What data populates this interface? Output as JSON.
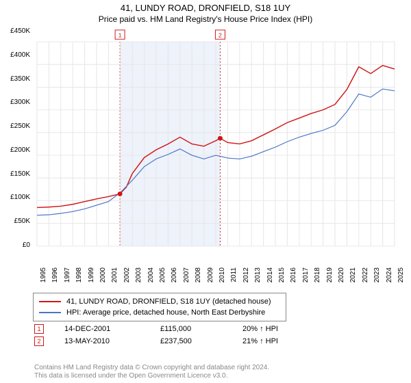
{
  "title": "41, LUNDY ROAD, DRONFIELD, S18 1UY",
  "subtitle": "Price paid vs. HM Land Registry's House Price Index (HPI)",
  "chart": {
    "type": "line",
    "background_color": "#ffffff",
    "grid_color": "#e6e6e6",
    "plot_border_color": "#888888",
    "ylim": [
      0,
      450000
    ],
    "ytick_step": 50000,
    "ytick_labels": [
      "£0",
      "£50K",
      "£100K",
      "£150K",
      "£200K",
      "£250K",
      "£300K",
      "£350K",
      "£400K",
      "£450K"
    ],
    "xlim": [
      1995,
      2025
    ],
    "xtick_step": 1,
    "xtick_labels": [
      "1995",
      "1996",
      "1997",
      "1998",
      "1999",
      "2000",
      "2001",
      "2002",
      "2003",
      "2004",
      "2005",
      "2006",
      "2007",
      "2008",
      "2009",
      "2010",
      "2011",
      "2012",
      "2013",
      "2014",
      "2015",
      "2016",
      "2017",
      "2018",
      "2019",
      "2020",
      "2021",
      "2022",
      "2023",
      "2024",
      "2025"
    ],
    "highlight_band_color": "#eef2fa",
    "highlight_band": [
      2001.96,
      2010.37
    ],
    "highlight_dash_color": "#d01616",
    "series": [
      {
        "name": "subject",
        "label": "41, LUNDY ROAD, DRONFIELD, S18 1UY (detached house)",
        "color": "#d01616",
        "line_width": 1.5,
        "data": [
          [
            1995,
            85000
          ],
          [
            1996,
            86000
          ],
          [
            1997,
            88000
          ],
          [
            1998,
            92000
          ],
          [
            1999,
            98000
          ],
          [
            2000,
            104000
          ],
          [
            2001,
            109000
          ],
          [
            2001.96,
            115000
          ],
          [
            2002.5,
            130000
          ],
          [
            2003,
            160000
          ],
          [
            2004,
            195000
          ],
          [
            2005,
            212000
          ],
          [
            2006,
            225000
          ],
          [
            2007,
            240000
          ],
          [
            2008,
            225000
          ],
          [
            2009,
            220000
          ],
          [
            2010,
            232000
          ],
          [
            2010.37,
            237500
          ],
          [
            2011,
            228000
          ],
          [
            2012,
            225000
          ],
          [
            2013,
            232000
          ],
          [
            2014,
            245000
          ],
          [
            2015,
            258000
          ],
          [
            2016,
            272000
          ],
          [
            2017,
            282000
          ],
          [
            2018,
            292000
          ],
          [
            2019,
            300000
          ],
          [
            2020,
            312000
          ],
          [
            2021,
            345000
          ],
          [
            2022,
            395000
          ],
          [
            2023,
            380000
          ],
          [
            2024,
            398000
          ],
          [
            2025,
            390000
          ]
        ]
      },
      {
        "name": "hpi",
        "label": "HPI: Average price, detached house, North East Derbyshire",
        "color": "#4a74c5",
        "line_width": 1.2,
        "data": [
          [
            1995,
            68000
          ],
          [
            1996,
            69000
          ],
          [
            1997,
            72000
          ],
          [
            1998,
            76000
          ],
          [
            1999,
            82000
          ],
          [
            2000,
            90000
          ],
          [
            2001,
            98000
          ],
          [
            2002,
            118000
          ],
          [
            2003,
            145000
          ],
          [
            2004,
            175000
          ],
          [
            2005,
            192000
          ],
          [
            2006,
            202000
          ],
          [
            2007,
            214000
          ],
          [
            2008,
            200000
          ],
          [
            2009,
            192000
          ],
          [
            2010,
            200000
          ],
          [
            2011,
            194000
          ],
          [
            2012,
            192000
          ],
          [
            2013,
            198000
          ],
          [
            2014,
            208000
          ],
          [
            2015,
            218000
          ],
          [
            2016,
            230000
          ],
          [
            2017,
            240000
          ],
          [
            2018,
            248000
          ],
          [
            2019,
            255000
          ],
          [
            2020,
            266000
          ],
          [
            2021,
            296000
          ],
          [
            2022,
            335000
          ],
          [
            2023,
            328000
          ],
          [
            2024,
            346000
          ],
          [
            2025,
            342000
          ]
        ]
      }
    ],
    "sale_markers": [
      {
        "n": "1",
        "x": 2001.96,
        "y": 115000,
        "color": "#d01616"
      },
      {
        "n": "2",
        "x": 2010.37,
        "y": 237500,
        "color": "#d01616"
      }
    ]
  },
  "legend": {
    "series1_color": "#d01616",
    "series1_label": "41, LUNDY ROAD, DRONFIELD, S18 1UY (detached house)",
    "series2_color": "#4a74c5",
    "series2_label": "HPI: Average price, detached house, North East Derbyshire"
  },
  "sales": [
    {
      "n": "1",
      "date": "14-DEC-2001",
      "price": "£115,000",
      "delta": "20% ↑ HPI",
      "box_color": "#d01616"
    },
    {
      "n": "2",
      "date": "13-MAY-2010",
      "price": "£237,500",
      "delta": "21% ↑ HPI",
      "box_color": "#d01616"
    }
  ],
  "footer": {
    "line1": "Contains HM Land Registry data © Crown copyright and database right 2024.",
    "line2": "This data is licensed under the Open Government Licence v3.0."
  }
}
